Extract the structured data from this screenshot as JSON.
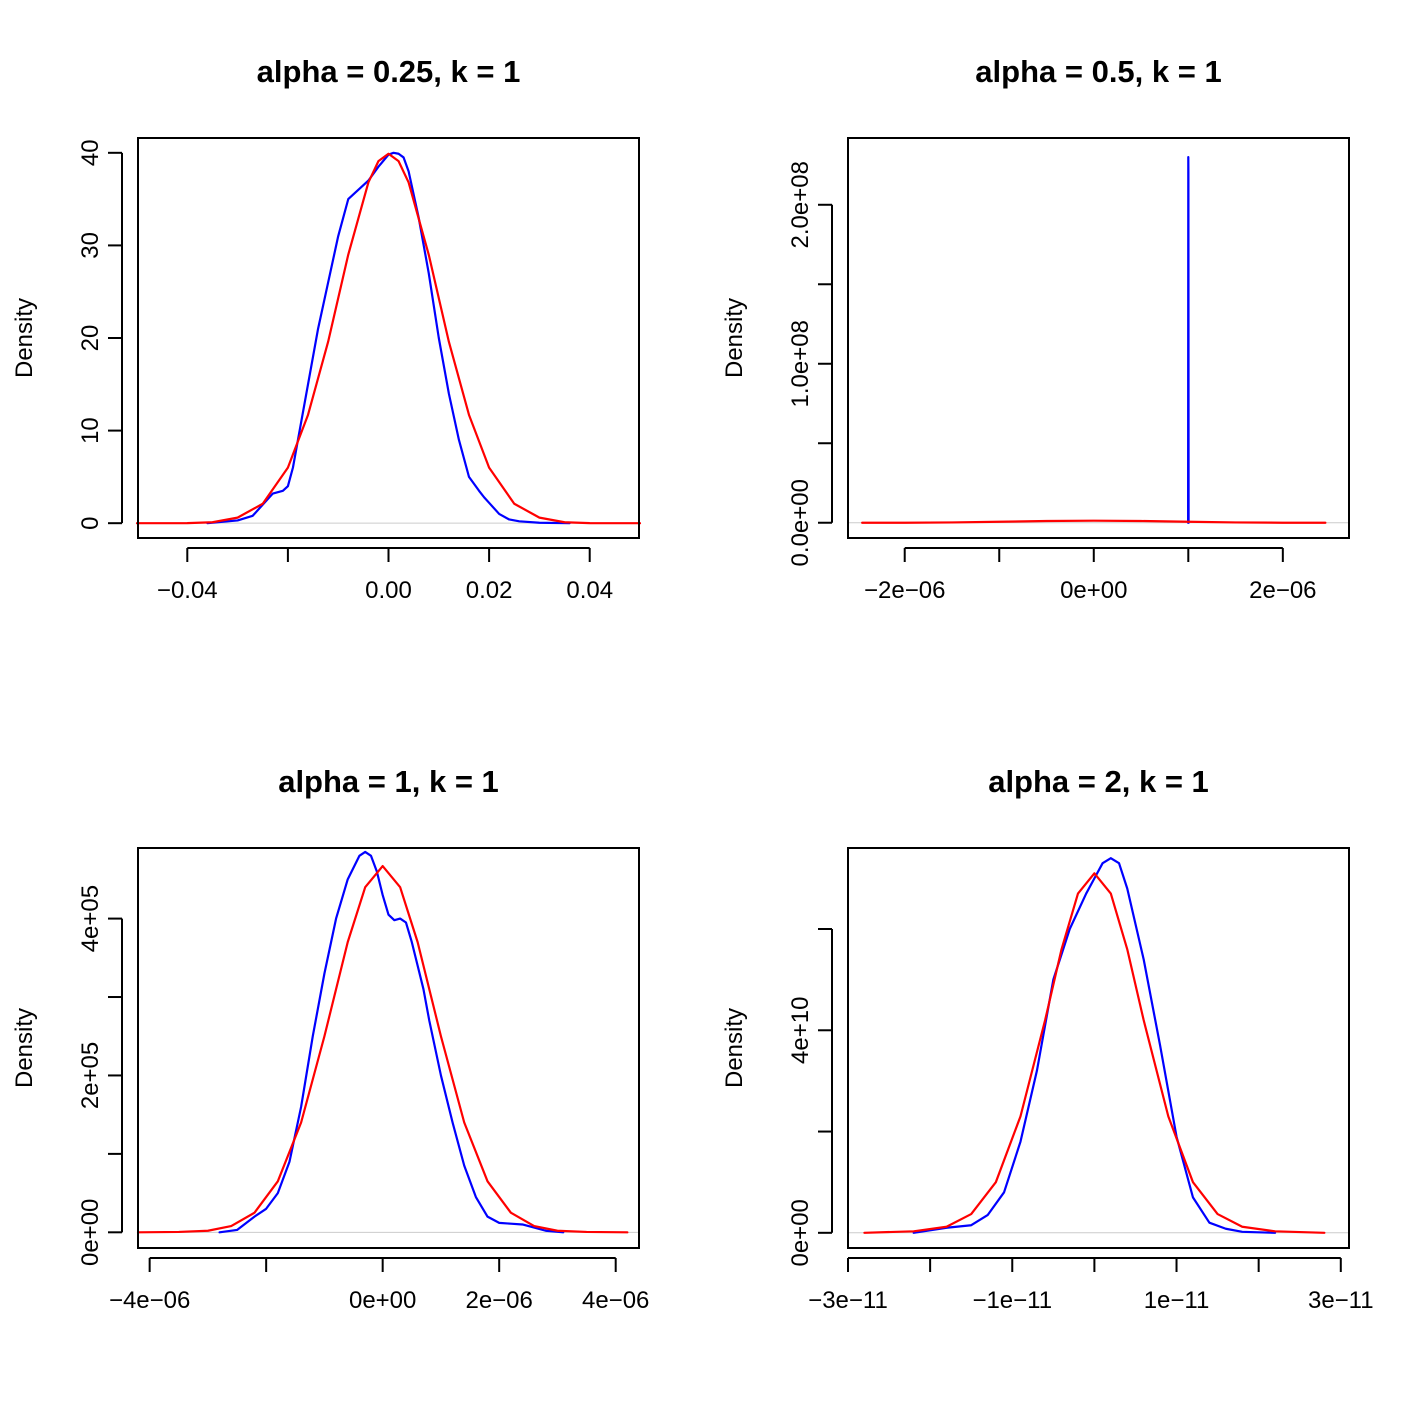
{
  "colors": {
    "empirical": "#0000ff",
    "theoretical": "#ff0000",
    "baseline": "#cccccc",
    "axis": "#000000"
  },
  "chart_data": [
    {
      "type": "line",
      "title": "alpha = 0.25, k = 1",
      "xlabel": "",
      "ylabel": "Density",
      "xlim": [
        -0.0498,
        0.0498
      ],
      "ylim": [
        -1.6,
        41.6
      ],
      "x_ticks": [
        -0.04,
        -0.02,
        0.0,
        0.02,
        0.04
      ],
      "x_tick_labels": [
        "−0.04",
        "",
        "0.00",
        "0.02",
        "0.04"
      ],
      "y_ticks": [
        0,
        10,
        20,
        30,
        40
      ],
      "y_tick_labels": [
        "0",
        "10",
        "20",
        "30",
        "40"
      ],
      "baseline": 0,
      "series": [
        {
          "color": "#0000ff",
          "x": [
            -0.036,
            -0.03,
            -0.027,
            -0.025,
            -0.023,
            -0.021,
            -0.02,
            -0.019,
            -0.018,
            -0.016,
            -0.014,
            -0.012,
            -0.01,
            -0.008,
            -0.006,
            -0.004,
            -0.002,
            0.0,
            0.001,
            0.002,
            0.003,
            0.004,
            0.006,
            0.008,
            0.01,
            0.012,
            0.014,
            0.016,
            0.018,
            0.019,
            0.02,
            0.022,
            0.024,
            0.026,
            0.03,
            0.036
          ],
          "y": [
            0,
            0.3,
            0.8,
            2.0,
            3.2,
            3.5,
            4.0,
            6.0,
            9.0,
            15.0,
            21.0,
            26.0,
            31.0,
            35.0,
            36.0,
            37.0,
            38.5,
            39.8,
            40.0,
            39.9,
            39.5,
            38.0,
            33.0,
            27.0,
            20.0,
            14.0,
            9.0,
            5.0,
            3.5,
            2.8,
            2.2,
            1.0,
            0.4,
            0.2,
            0.05,
            0
          ]
        },
        {
          "color": "#ff0000",
          "x": [
            -0.05,
            -0.04,
            -0.035,
            -0.03,
            -0.025,
            -0.02,
            -0.016,
            -0.012,
            -0.008,
            -0.004,
            -0.002,
            0.0,
            0.002,
            0.004,
            0.008,
            0.012,
            0.016,
            0.02,
            0.025,
            0.03,
            0.035,
            0.04,
            0.05
          ],
          "y": [
            0,
            0.01,
            0.1,
            0.6,
            2.1,
            6.0,
            11.7,
            19.6,
            29.0,
            36.8,
            39.1,
            39.9,
            39.1,
            36.8,
            29.0,
            19.6,
            11.7,
            6.0,
            2.1,
            0.6,
            0.1,
            0.01,
            0
          ]
        }
      ]
    },
    {
      "type": "line",
      "title": "alpha = 0.5, k = 1",
      "xlabel": "",
      "ylabel": "Density",
      "xlim": [
        -2.6e-06,
        2.7e-06
      ],
      "ylim": [
        -9600000.0,
        242000000.0
      ],
      "x_ticks": [
        -2e-06,
        -1e-06,
        0,
        1e-06,
        2e-06
      ],
      "x_tick_labels": [
        "−2e−06",
        "",
        "0e+00",
        "",
        "2e−06"
      ],
      "y_ticks": [
        0,
        50000000.0,
        100000000.0,
        150000000.0,
        200000000.0
      ],
      "y_tick_labels": [
        "0.0e+00",
        "",
        "1.0e+08",
        "",
        "2.0e+08"
      ],
      "baseline": 0,
      "series": [
        {
          "color": "#0000ff",
          "x": [
            9.98e-07,
            1e-06,
            1.001e-06,
            1.003e-06
          ],
          "y": [
            0,
            230000000.0,
            220000000.0,
            0
          ]
        },
        {
          "color": "#ff0000",
          "x": [
            -2.45e-06,
            -2e-06,
            -1.5e-06,
            -1e-06,
            -5e-07,
            0,
            5e-07,
            1e-06,
            1.5e-06,
            2e-06,
            2.45e-06
          ],
          "y": [
            0,
            0,
            200000.0,
            600000.0,
            1100000.0,
            1300000.0,
            1100000.0,
            600000.0,
            200000.0,
            0,
            0
          ]
        }
      ]
    },
    {
      "type": "line",
      "title": "alpha = 1, k = 1",
      "xlabel": "",
      "ylabel": "Density",
      "xlim": [
        -4.2e-06,
        4.4e-06
      ],
      "ylim": [
        -20000.0,
        490000.0
      ],
      "x_ticks": [
        -4e-06,
        -2e-06,
        0,
        2e-06,
        4e-06
      ],
      "x_tick_labels": [
        "−4e−06",
        "",
        "0e+00",
        "2e−06",
        "4e−06"
      ],
      "y_ticks": [
        0,
        100000.0,
        200000.0,
        300000.0,
        400000.0
      ],
      "y_tick_labels": [
        "0e+00",
        "",
        "2e+05",
        "",
        "4e+05"
      ],
      "baseline": 0,
      "series": [
        {
          "color": "#0000ff",
          "x": [
            -2.8e-06,
            -2.5e-06,
            -2.2e-06,
            -2e-06,
            -1.8e-06,
            -1.6e-06,
            -1.4e-06,
            -1.2e-06,
            -1e-06,
            -8e-07,
            -6e-07,
            -4e-07,
            -3e-07,
            -2e-07,
            -1e-07,
            0,
            1e-07,
            2e-07,
            3e-07,
            4e-07,
            5e-07,
            6e-07,
            7e-07,
            8e-07,
            1e-06,
            1.2e-06,
            1.4e-06,
            1.6e-06,
            1.8e-06,
            2e-06,
            2.2e-06,
            2.4e-06,
            2.6e-06,
            2.8e-06,
            3.1e-06
          ],
          "y": [
            0,
            3000.0,
            20000.0,
            30000.0,
            50000.0,
            90000.0,
            160000.0,
            250000.0,
            330000.0,
            400000.0,
            450000.0,
            480000.0,
            485000.0,
            480000.0,
            460000.0,
            430000.0,
            405000.0,
            398000.0,
            400000.0,
            395000.0,
            370000.0,
            340000.0,
            310000.0,
            270000.0,
            200000.0,
            140000.0,
            85000.0,
            45000.0,
            20000.0,
            12000.0,
            11000.0,
            10000.0,
            6000.0,
            2000.0,
            0
          ]
        },
        {
          "color": "#ff0000",
          "x": [
            -4.2e-06,
            -3.5e-06,
            -3e-06,
            -2.6e-06,
            -2.2e-06,
            -1.8e-06,
            -1.4e-06,
            -1e-06,
            -6e-07,
            -3e-07,
            0,
            3e-07,
            6e-07,
            1e-06,
            1.4e-06,
            1.8e-06,
            2.2e-06,
            2.6e-06,
            3e-06,
            3.5e-06,
            4.2e-06
          ],
          "y": [
            0,
            500,
            2000.0,
            8000.0,
            25000.0,
            65000.0,
            140000.0,
            250000.0,
            370000.0,
            440000.0,
            467000.0,
            440000.0,
            370000.0,
            250000.0,
            140000.0,
            65000.0,
            25000.0,
            8000.0,
            2000.0,
            500,
            0
          ]
        }
      ]
    },
    {
      "type": "line",
      "title": "alpha = 2, k = 1",
      "xlabel": "",
      "ylabel": "Density",
      "xlim": [
        -3e-11,
        3.1e-11
      ],
      "ylim": [
        -3000000000.0,
        76000000000.0
      ],
      "x_ticks": [
        -3e-11,
        -2e-11,
        -1e-11,
        0,
        1e-11,
        2e-11,
        3e-11
      ],
      "x_tick_labels": [
        "−3e−11",
        "",
        "−1e−11",
        "",
        "1e−11",
        "",
        "3e−11"
      ],
      "y_ticks": [
        0,
        20000000000.0,
        40000000000.0,
        60000000000.0
      ],
      "y_tick_labels": [
        "0e+00",
        "",
        "4e+10",
        ""
      ],
      "baseline": 0,
      "series": [
        {
          "color": "#0000ff",
          "x": [
            -2.2e-11,
            -1.8e-11,
            -1.5e-11,
            -1.3e-11,
            -1.1e-11,
            -9e-12,
            -7e-12,
            -5e-12,
            -3e-12,
            -1e-12,
            0,
            1e-12,
            2e-12,
            3e-12,
            4e-12,
            6e-12,
            8e-12,
            1e-11,
            1.2e-11,
            1.4e-11,
            1.6e-11,
            1.8e-11,
            2.2e-11
          ],
          "y": [
            0,
            1000000000.0,
            1500000000.0,
            3500000000.0,
            8000000000.0,
            18000000000.0,
            32000000000.0,
            50000000000.0,
            60000000000.0,
            67000000000.0,
            70000000000.0,
            73000000000.0,
            74000000000.0,
            73000000000.0,
            68000000000.0,
            54000000000.0,
            37000000000.0,
            19000000000.0,
            7000000000.0,
            2000000000.0,
            800000000.0,
            200000000.0,
            0
          ]
        },
        {
          "color": "#ff0000",
          "x": [
            -2.8e-11,
            -2.2e-11,
            -1.8e-11,
            -1.5e-11,
            -1.2e-11,
            -9e-12,
            -6e-12,
            -4e-12,
            -2e-12,
            0,
            2e-12,
            4e-12,
            6e-12,
            9e-12,
            1.2e-11,
            1.5e-11,
            1.8e-11,
            2.2e-11,
            2.8e-11
          ],
          "y": [
            0,
            300000000.0,
            1200000000.0,
            3700000000.0,
            10000000000.0,
            23000000000.0,
            42000000000.0,
            56000000000.0,
            67000000000.0,
            71000000000.0,
            67000000000.0,
            56000000000.0,
            42000000000.0,
            23000000000.0,
            10000000000.0,
            3700000000.0,
            1200000000.0,
            300000000.0,
            0
          ]
        }
      ]
    }
  ]
}
